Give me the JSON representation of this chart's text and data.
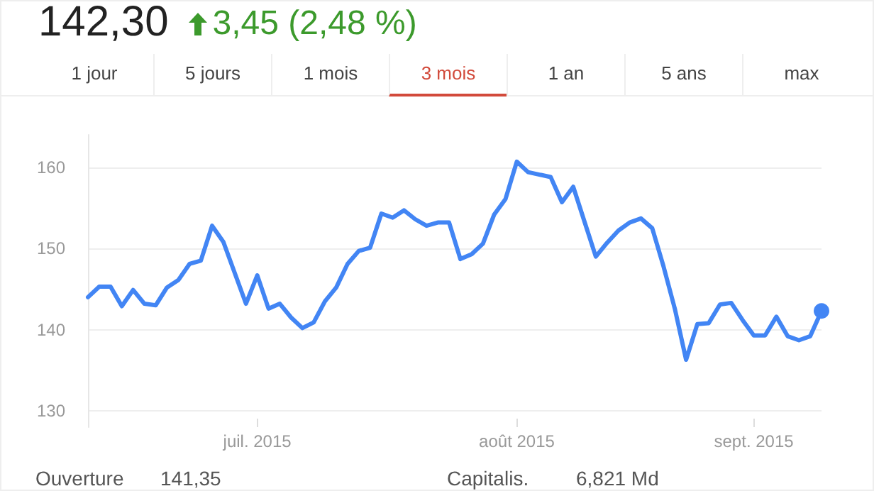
{
  "chart_data": {
    "type": "line",
    "title": "142,30",
    "subtitle": "3,45 (2,48 %)",
    "annotations": [
      "1 jour",
      "5 jours",
      "1 mois",
      "3 mois",
      "1 an",
      "5 ans",
      "max",
      "Ouverture",
      "141,35",
      "Capitalis.",
      "6,821 Md"
    ],
    "categories": [
      null,
      null,
      null,
      null,
      null,
      null,
      null,
      null,
      null,
      null,
      null,
      null,
      null,
      null,
      null,
      "juil. 2015",
      null,
      null,
      null,
      null,
      null,
      null,
      null,
      null,
      null,
      null,
      null,
      null,
      null,
      null,
      null,
      null,
      null,
      null,
      null,
      null,
      null,
      null,
      "août 2015",
      null,
      null,
      null,
      null,
      null,
      null,
      null,
      null,
      null,
      null,
      null,
      null,
      null,
      null,
      null,
      null,
      null,
      null,
      null,
      null,
      "sept. 2015",
      null,
      null,
      null,
      null,
      null,
      null
    ],
    "series": [
      {
        "color": "#4285f4",
        "values": [
          144.0,
          145.3,
          145.3,
          142.9,
          144.9,
          143.2,
          143.0,
          145.2,
          146.1,
          148.1,
          148.5,
          152.8,
          150.8,
          147.0,
          143.2,
          146.7,
          142.6,
          143.2,
          141.5,
          140.2,
          140.9,
          143.5,
          145.2,
          148.1,
          149.7,
          150.1,
          154.3,
          153.8,
          154.7,
          153.6,
          152.8,
          153.2,
          153.2,
          148.7,
          149.3,
          150.6,
          154.2,
          156.1,
          160.7,
          159.4,
          159.1,
          158.8,
          155.7,
          157.6,
          153.3,
          149.0,
          150.7,
          152.2,
          153.2,
          153.7,
          152.5,
          147.8,
          142.6,
          136.3,
          140.7,
          140.8,
          143.1,
          143.3,
          141.2,
          139.3,
          139.3,
          141.6,
          139.2,
          138.7,
          139.2,
          142.3
        ]
      }
    ],
    "ylim": [
      128,
      164
    ],
    "yticks": [
      130,
      140,
      150,
      160
    ],
    "grid": "y",
    "marker": "none",
    "line_style": "solid"
  }
}
